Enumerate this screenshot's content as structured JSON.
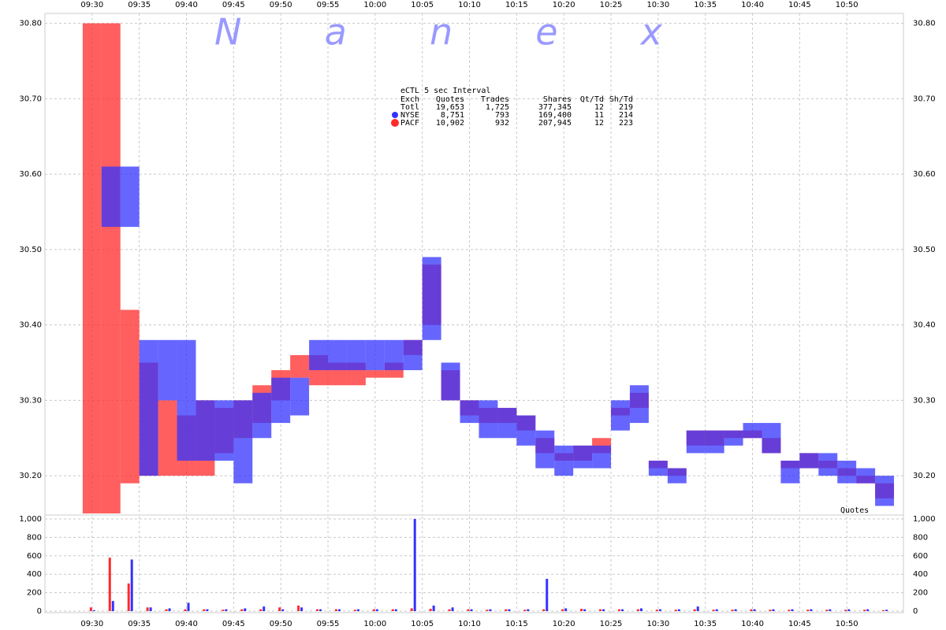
{
  "chart_data": [
    {
      "type": "range-bar",
      "watermark": "N a n e x",
      "annotation": "Quotes",
      "stats_table": {
        "title": "eCTL 5 sec Interval",
        "columns": [
          "Exch",
          "Quotes",
          "Trades",
          "Shares",
          "Qt/Td",
          "Sh/Td"
        ],
        "total": [
          "Totl",
          "19,653",
          "1,725",
          "377,345",
          "12",
          "219"
        ],
        "by_series": [
          [
            "8,751",
            "793",
            "169,400",
            "11",
            "214"
          ],
          [
            "10,902",
            "932",
            "207,945",
            "12",
            "223"
          ]
        ]
      },
      "x": [
        "09:30",
        "09:32",
        "09:34",
        "09:36",
        "09:38",
        "09:40",
        "09:42",
        "09:44",
        "09:46",
        "09:48",
        "09:50",
        "09:52",
        "09:54",
        "09:56",
        "09:58",
        "10:00",
        "10:02",
        "10:04",
        "10:06",
        "10:08",
        "10:10",
        "10:12",
        "10:14",
        "10:16",
        "10:18",
        "10:20",
        "10:22",
        "10:24",
        "10:26",
        "10:28",
        "10:30",
        "10:32",
        "10:34",
        "10:36",
        "10:38",
        "10:40",
        "10:42",
        "10:44",
        "10:46",
        "10:48",
        "10:50",
        "10:52",
        "10:54"
      ],
      "series": [
        {
          "name": "PACF",
          "color": "#ff2a2a",
          "high": [
            30.8,
            30.8,
            30.42,
            30.35,
            30.3,
            30.28,
            30.3,
            30.29,
            30.3,
            30.32,
            30.34,
            30.36,
            30.36,
            30.35,
            30.35,
            30.34,
            30.35,
            30.38,
            30.48,
            30.34,
            30.3,
            30.29,
            30.29,
            30.28,
            30.25,
            30.23,
            30.24,
            30.25,
            30.29,
            30.31,
            30.22,
            30.21,
            30.26,
            30.26,
            30.26,
            30.26,
            30.25,
            30.22,
            30.23,
            30.22,
            30.21,
            30.2,
            30.19
          ],
          "low": [
            30.15,
            30.15,
            30.19,
            30.2,
            30.2,
            30.2,
            30.2,
            30.23,
            30.25,
            30.27,
            30.3,
            30.33,
            30.32,
            30.32,
            30.32,
            30.33,
            30.33,
            30.36,
            30.4,
            30.3,
            30.28,
            30.27,
            30.27,
            30.26,
            30.23,
            30.22,
            30.22,
            30.23,
            30.28,
            30.29,
            30.21,
            30.2,
            30.24,
            30.24,
            30.25,
            30.25,
            30.23,
            30.21,
            30.21,
            30.21,
            30.2,
            30.19,
            30.17
          ]
        },
        {
          "name": "NYSE",
          "color": "#3333ff",
          "high": [
            null,
            30.61,
            30.61,
            30.38,
            30.38,
            30.38,
            30.3,
            30.3,
            30.3,
            30.31,
            30.33,
            30.33,
            30.38,
            30.38,
            30.38,
            30.38,
            30.38,
            30.38,
            30.49,
            30.35,
            30.3,
            30.3,
            30.29,
            30.28,
            30.26,
            30.24,
            30.24,
            30.24,
            30.3,
            30.32,
            30.22,
            30.21,
            30.26,
            30.26,
            30.26,
            30.27,
            30.27,
            30.22,
            30.23,
            30.23,
            30.22,
            30.21,
            30.2
          ],
          "low": [
            null,
            30.53,
            30.53,
            30.2,
            30.3,
            30.22,
            30.22,
            30.22,
            30.19,
            30.25,
            30.27,
            30.28,
            30.34,
            30.34,
            30.34,
            30.34,
            30.34,
            30.34,
            30.38,
            30.3,
            30.27,
            30.25,
            30.25,
            30.24,
            30.21,
            30.2,
            30.21,
            30.21,
            30.26,
            30.27,
            30.2,
            30.19,
            30.23,
            30.23,
            30.24,
            30.25,
            30.23,
            30.19,
            30.21,
            30.2,
            30.19,
            30.19,
            30.16
          ]
        }
      ],
      "xlim": [
        "09:25",
        "10:56"
      ],
      "xticks": [
        "09:30",
        "09:35",
        "09:40",
        "09:45",
        "09:50",
        "09:55",
        "10:00",
        "10:05",
        "10:10",
        "10:15",
        "10:20",
        "10:25",
        "10:30",
        "10:35",
        "10:40",
        "10:45",
        "10:50"
      ],
      "ylim": [
        30.15,
        30.81
      ],
      "yticks": [
        {
          "value": 30.2,
          "label": "30.20"
        },
        {
          "value": 30.3,
          "label": "30.30"
        },
        {
          "value": 30.4,
          "label": "30.40"
        },
        {
          "value": 30.5,
          "label": "30.50"
        },
        {
          "value": 30.6,
          "label": "30.60"
        },
        {
          "value": 30.7,
          "label": "30.70"
        },
        {
          "value": 30.8,
          "label": "30.80"
        }
      ],
      "grid": true
    },
    {
      "type": "bar",
      "x": [
        "09:30",
        "09:32",
        "09:34",
        "09:36",
        "09:38",
        "09:40",
        "09:42",
        "09:44",
        "09:46",
        "09:48",
        "09:50",
        "09:52",
        "09:54",
        "09:56",
        "09:58",
        "10:00",
        "10:02",
        "10:04",
        "10:06",
        "10:08",
        "10:10",
        "10:12",
        "10:14",
        "10:16",
        "10:18",
        "10:20",
        "10:22",
        "10:24",
        "10:26",
        "10:28",
        "10:30",
        "10:32",
        "10:34",
        "10:36",
        "10:38",
        "10:40",
        "10:42",
        "10:44",
        "10:46",
        "10:48",
        "10:50",
        "10:52",
        "10:54"
      ],
      "series": [
        {
          "name": "PACF",
          "color": "#ff2a2a",
          "values": [
            40,
            580,
            300,
            40,
            20,
            20,
            20,
            15,
            20,
            20,
            40,
            60,
            20,
            20,
            15,
            20,
            20,
            30,
            25,
            20,
            20,
            15,
            20,
            15,
            20,
            20,
            25,
            20,
            20,
            20,
            15,
            15,
            20,
            15,
            15,
            20,
            15,
            15,
            15,
            15,
            15,
            15,
            10
          ]
        },
        {
          "name": "NYSE",
          "color": "#3333ff",
          "values": [
            10,
            110,
            560,
            40,
            30,
            90,
            20,
            20,
            30,
            50,
            20,
            40,
            20,
            20,
            20,
            20,
            20,
            1000,
            60,
            40,
            20,
            20,
            20,
            20,
            350,
            30,
            20,
            20,
            20,
            30,
            20,
            20,
            50,
            20,
            20,
            20,
            20,
            20,
            20,
            20,
            20,
            20,
            15
          ]
        }
      ],
      "xlim": [
        "09:25",
        "10:56"
      ],
      "xticks": [
        "09:30",
        "09:35",
        "09:40",
        "09:45",
        "09:50",
        "09:55",
        "10:00",
        "10:05",
        "10:10",
        "10:15",
        "10:20",
        "10:25",
        "10:30",
        "10:35",
        "10:40",
        "10:45",
        "10:50"
      ],
      "ylim": [
        0,
        1000
      ],
      "yticks": [
        0,
        200,
        400,
        600,
        800,
        {
          "value": 1000,
          "label": "1,000"
        }
      ],
      "grid": true
    }
  ]
}
